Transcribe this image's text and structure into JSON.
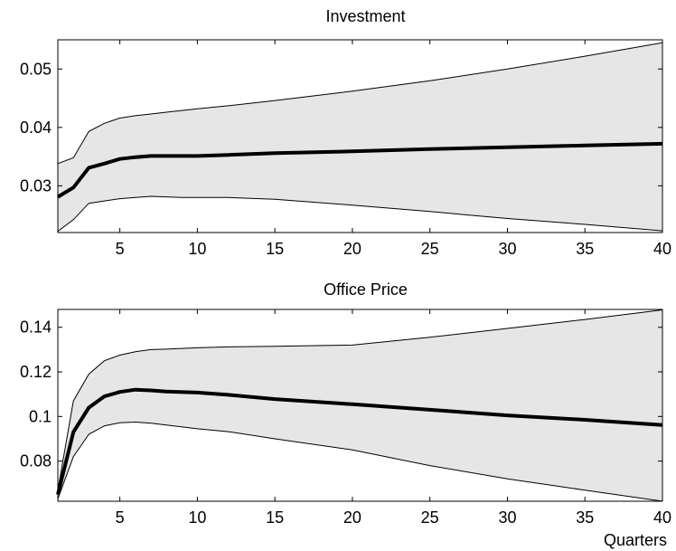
{
  "chart_data": [
    {
      "type": "line",
      "title": "Investment",
      "xlabel": "",
      "ylabel": "",
      "xlim": [
        1,
        40
      ],
      "ylim": [
        0.022,
        0.055
      ],
      "xticks": [
        5,
        10,
        15,
        20,
        25,
        30,
        35,
        40
      ],
      "yticks": [
        0.03,
        0.04,
        0.05
      ],
      "ytick_labels": [
        "0.03",
        "0.04",
        "0.05"
      ],
      "grid": false,
      "band_color": "#e6e6e6",
      "line_color": "#000000",
      "x": [
        1,
        2,
        3,
        4,
        5,
        6,
        7,
        8,
        9,
        10,
        12,
        15,
        20,
        25,
        30,
        35,
        40
      ],
      "median": [
        0.0281,
        0.0297,
        0.0331,
        0.0338,
        0.0346,
        0.0349,
        0.0351,
        0.0351,
        0.0351,
        0.0351,
        0.0353,
        0.0356,
        0.0359,
        0.0363,
        0.0366,
        0.0369,
        0.0372
      ],
      "upper": [
        0.0338,
        0.0348,
        0.0393,
        0.0407,
        0.0416,
        0.042,
        0.0423,
        0.0426,
        0.0429,
        0.0432,
        0.0437,
        0.0446,
        0.0462,
        0.048,
        0.05,
        0.0522,
        0.0545
      ],
      "lower": [
        0.0222,
        0.0242,
        0.027,
        0.0274,
        0.0278,
        0.028,
        0.0282,
        0.0281,
        0.028,
        0.028,
        0.028,
        0.0277,
        0.0267,
        0.0256,
        0.0244,
        0.0234,
        0.0223
      ]
    },
    {
      "type": "line",
      "title": "Office Price",
      "xlabel": "Quarters",
      "ylabel": "",
      "xlim": [
        1,
        40
      ],
      "ylim": [
        0.062,
        0.148
      ],
      "xticks": [
        5,
        10,
        15,
        20,
        25,
        30,
        35,
        40
      ],
      "yticks": [
        0.08,
        0.1,
        0.12,
        0.14
      ],
      "ytick_labels": [
        "0.08",
        "0.1",
        "0.12",
        "0.14"
      ],
      "grid": false,
      "band_color": "#e6e6e6",
      "line_color": "#000000",
      "x": [
        1,
        2,
        3,
        4,
        5,
        6,
        7,
        8,
        10,
        12,
        15,
        20,
        25,
        30,
        35,
        40
      ],
      "median": [
        0.065,
        0.093,
        0.104,
        0.109,
        0.111,
        0.112,
        0.1117,
        0.1112,
        0.1107,
        0.1097,
        0.1078,
        0.1055,
        0.103,
        0.1005,
        0.0985,
        0.0962
      ],
      "upper": [
        0.067,
        0.107,
        0.119,
        0.125,
        0.1275,
        0.129,
        0.13,
        0.1302,
        0.1308,
        0.1312,
        0.1315,
        0.132,
        0.1355,
        0.1395,
        0.1435,
        0.1478
      ],
      "lower": [
        0.063,
        0.082,
        0.092,
        0.0958,
        0.0972,
        0.0975,
        0.097,
        0.0962,
        0.0945,
        0.0932,
        0.09,
        0.085,
        0.078,
        0.072,
        0.067,
        0.062
      ]
    }
  ]
}
